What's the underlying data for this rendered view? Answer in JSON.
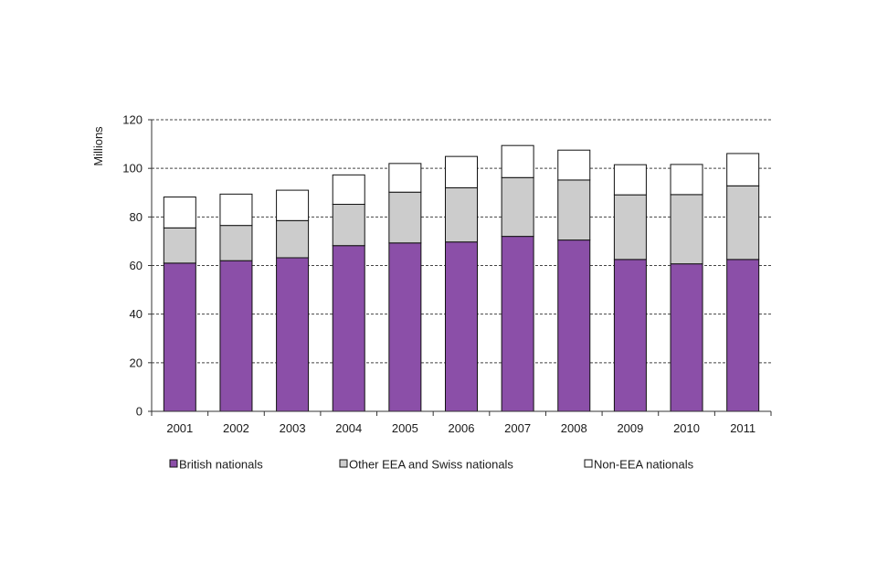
{
  "chart_data": {
    "type": "bar",
    "stacked": true,
    "title": "",
    "xlabel": "",
    "ylabel": "Millions",
    "ylim": [
      0,
      120
    ],
    "yticks": [
      0,
      20,
      40,
      60,
      80,
      100,
      120
    ],
    "grid": true,
    "grid_style": "dashed",
    "legend_position": "bottom",
    "categories": [
      "2001",
      "2002",
      "2003",
      "2004",
      "2005",
      "2006",
      "2007",
      "2008",
      "2009",
      "2010",
      "2011"
    ],
    "series": [
      {
        "name": "British nationals",
        "color": "#8b4fa8",
        "values": [
          61,
          62,
          63.2,
          68.2,
          69.3,
          69.7,
          72,
          70.5,
          62.5,
          60.7,
          62.5
        ]
      },
      {
        "name": "Other EEA and Swiss nationals",
        "color": "#cccccc",
        "values": [
          14.5,
          14.5,
          15.3,
          17,
          20.9,
          22.3,
          24.2,
          24.7,
          26.6,
          28.5,
          30.3
        ]
      },
      {
        "name": "Non-EEA nationals",
        "color": "#ffffff",
        "values": [
          12.7,
          12.9,
          12.5,
          12.1,
          11.8,
          12.9,
          13.2,
          12.3,
          12.4,
          12.4,
          13.3
        ]
      }
    ]
  }
}
